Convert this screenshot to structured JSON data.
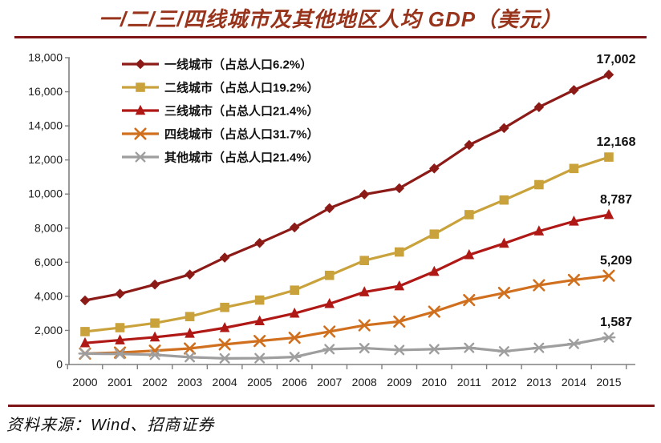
{
  "title": "一/二/三/四线城市及其他地区人均 GDP（美元）",
  "source": "资料来源：Wind、招商证券",
  "colors": {
    "title": "#98341b",
    "rule": "#7e1416",
    "axis": "#808080",
    "tick_text": "#1a1a1a",
    "label_text": "#111111"
  },
  "chart_data": {
    "type": "line",
    "x": [
      "2000",
      "2001",
      "2002",
      "2003",
      "2004",
      "2005",
      "2006",
      "2007",
      "2008",
      "2009",
      "2010",
      "2011",
      "2012",
      "2013",
      "2014",
      "2015"
    ],
    "series": [
      {
        "name": "一线城市（占总人口6.2%）",
        "marker": "diamond",
        "color": "#8c1a17",
        "values": [
          3760,
          4150,
          4690,
          5280,
          6270,
          7130,
          8040,
          9170,
          9980,
          10340,
          11500,
          12880,
          13870,
          15100,
          16100,
          17002
        ],
        "end_label": "17,002"
      },
      {
        "name": "二线城市（占总人口19.2%）",
        "marker": "square",
        "color": "#c9a23c",
        "values": [
          1930,
          2160,
          2430,
          2810,
          3350,
          3780,
          4360,
          5230,
          6100,
          6600,
          7650,
          8790,
          9650,
          10550,
          11500,
          12168
        ],
        "end_label": "12,168"
      },
      {
        "name": "三线城市（占总人口21.4%）",
        "marker": "triangle",
        "color": "#b01815",
        "values": [
          1260,
          1430,
          1600,
          1820,
          2150,
          2550,
          3000,
          3560,
          4250,
          4600,
          5450,
          6430,
          7100,
          7820,
          8400,
          8787
        ],
        "end_label": "8,787"
      },
      {
        "name": "四线城市（占总人口31.7%）",
        "marker": "x",
        "color": "#d0701e",
        "values": [
          640,
          700,
          810,
          940,
          1180,
          1380,
          1570,
          1930,
          2300,
          2520,
          3100,
          3780,
          4200,
          4650,
          4960,
          5209
        ],
        "end_label": "5,209"
      },
      {
        "name": "其他城市（占总人口21.4%）",
        "marker": "asterisk",
        "color": "#9e9e9e",
        "values": [
          640,
          620,
          570,
          430,
          360,
          370,
          440,
          900,
          960,
          850,
          900,
          980,
          770,
          980,
          1210,
          1587
        ],
        "end_label": "1,587"
      }
    ],
    "ylim": [
      0,
      18000
    ],
    "ytick_step": 2000,
    "yticklabels": [
      "0",
      "2,000",
      "4,000",
      "6,000",
      "8,000",
      "10,000",
      "12,000",
      "14,000",
      "16,000",
      "18,000"
    ],
    "legend_position": "top-left",
    "grid": false
  }
}
